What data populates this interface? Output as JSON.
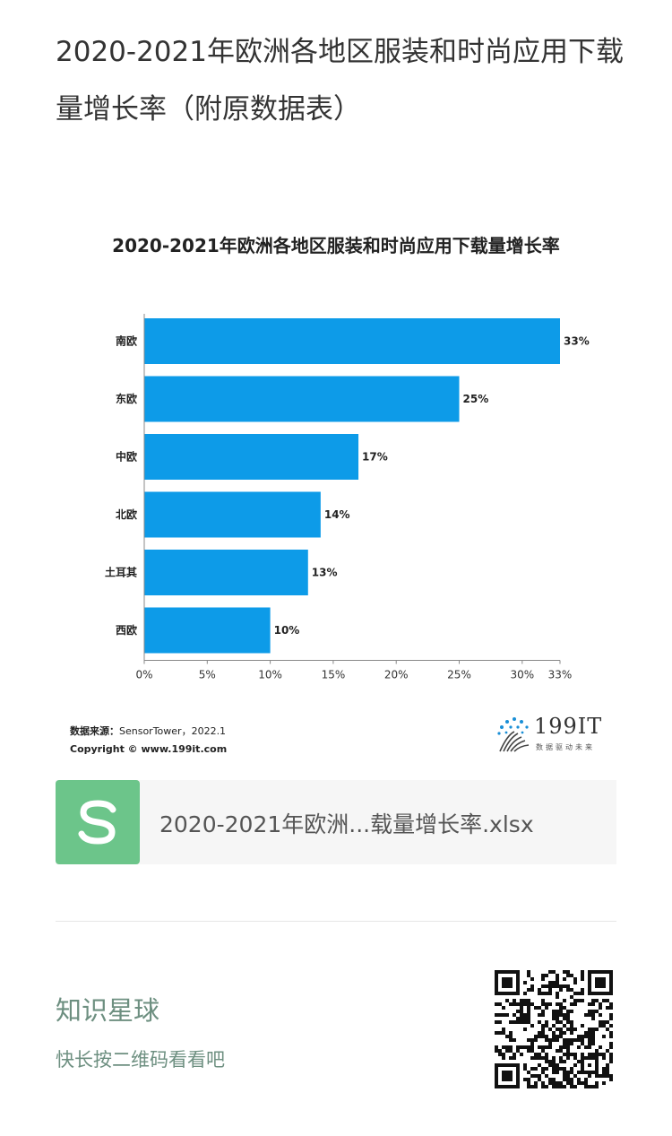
{
  "post": {
    "title": "2020-2021年欧洲各地区服装和时尚应用下载量增长率（附原数据表）"
  },
  "chart_data": {
    "type": "bar",
    "orientation": "horizontal",
    "title": "2020-2021年欧洲各地区服装和时尚应用下载量增长率",
    "categories": [
      "南欧",
      "东欧",
      "中欧",
      "北欧",
      "土耳其",
      "西欧"
    ],
    "values": [
      33,
      25,
      17,
      14,
      13,
      10
    ],
    "value_labels": [
      "33%",
      "25%",
      "17%",
      "14%",
      "13%",
      "10%"
    ],
    "x_ticks": [
      "0%",
      "5%",
      "10%",
      "15%",
      "20%",
      "25%",
      "30%",
      "33%"
    ],
    "x_tick_values": [
      0,
      5,
      10,
      15,
      20,
      25,
      30,
      33
    ],
    "xlim": [
      0,
      33
    ],
    "bar_color": "#0d9be8",
    "grid": false
  },
  "source": {
    "label": "数据来源：",
    "text": "SensorTower，2022.1",
    "copyright": "Copyright © www.199it.com"
  },
  "logo": {
    "text": "199IT",
    "tagline": "数据驱动未来"
  },
  "file": {
    "name": "2020-2021年欧洲...载量增长率.xlsx",
    "icon": "spreadsheet-icon",
    "icon_color": "#6cc58a"
  },
  "footer": {
    "title": "知识星球",
    "subtitle": "快长按二维码看看吧",
    "qr_icon": "qr-code-icon"
  }
}
